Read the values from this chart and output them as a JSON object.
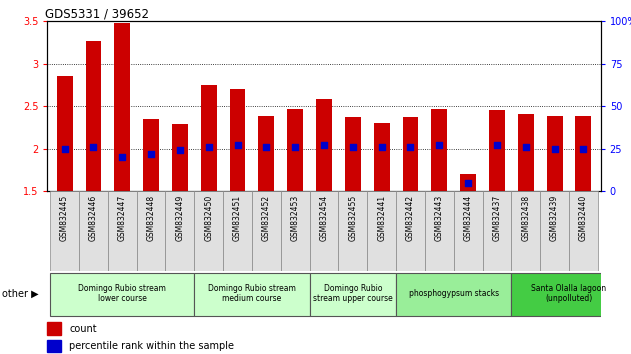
{
  "title": "GDS5331 / 39652",
  "samples": [
    "GSM832445",
    "GSM832446",
    "GSM832447",
    "GSM832448",
    "GSM832449",
    "GSM832450",
    "GSM832451",
    "GSM832452",
    "GSM832453",
    "GSM832454",
    "GSM832455",
    "GSM832441",
    "GSM832442",
    "GSM832443",
    "GSM832444",
    "GSM832437",
    "GSM832438",
    "GSM832439",
    "GSM832440"
  ],
  "counts": [
    2.85,
    3.27,
    3.48,
    2.35,
    2.29,
    2.75,
    2.7,
    2.39,
    2.47,
    2.58,
    2.37,
    2.3,
    2.37,
    2.47,
    1.7,
    2.45,
    2.41,
    2.38,
    2.38
  ],
  "percentiles": [
    25.0,
    26.0,
    20.0,
    22.0,
    24.0,
    26.0,
    27.0,
    26.0,
    26.0,
    27.0,
    26.0,
    26.0,
    26.0,
    27.0,
    5.0,
    27.0,
    26.0,
    25.0,
    25.0
  ],
  "bar_color": "#cc0000",
  "dot_color": "#0000cc",
  "ymin": 1.5,
  "ymax": 3.5,
  "y2min": 0,
  "y2max": 100,
  "yticks": [
    1.5,
    2.0,
    2.5,
    3.0,
    3.5
  ],
  "ytick_labels": [
    "1.5",
    "2",
    "2.5",
    "3",
    "3.5"
  ],
  "y2ticks": [
    0,
    25,
    50,
    75,
    100
  ],
  "y2tick_labels": [
    "0",
    "25",
    "50",
    "75",
    "100%"
  ],
  "groups": [
    {
      "label": "Domingo Rubio stream\nlower course",
      "start": 0,
      "end": 5,
      "color": "#ccffcc"
    },
    {
      "label": "Domingo Rubio stream\nmedium course",
      "start": 5,
      "end": 9,
      "color": "#ccffcc"
    },
    {
      "label": "Domingo Rubio\nstream upper course",
      "start": 9,
      "end": 12,
      "color": "#ccffcc"
    },
    {
      "label": "phosphogypsum stacks",
      "start": 12,
      "end": 16,
      "color": "#99ee99"
    },
    {
      "label": "Santa Olalla lagoon\n(unpolluted)",
      "start": 16,
      "end": 20,
      "color": "#44cc44"
    }
  ],
  "legend_count_label": "count",
  "legend_pct_label": "percentile rank within the sample",
  "bg_color": "#ffffff",
  "ax_bg_color": "#ffffff",
  "grid_color": "#000000"
}
